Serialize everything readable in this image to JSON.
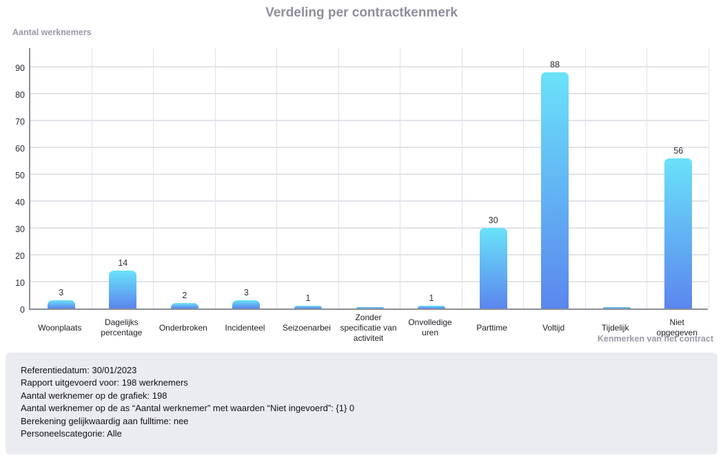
{
  "chart_data": {
    "type": "bar",
    "title": "Verdeling per contractkenmerk",
    "ylabel": "Aantal werknemers",
    "xlabel": "Kenmerken van het contract",
    "categories": [
      "Woonplaats",
      "Dagelijks percentage",
      "Onderbroken",
      "Incidenteel",
      "Seizoenarbei",
      "Zonder specificatie van activiteit",
      "Onvolledige uren",
      "Parttime",
      "Voltijd",
      "Tijdelijk",
      "Niet opgegeven"
    ],
    "values": [
      3,
      14,
      2,
      3,
      1,
      0,
      1,
      30,
      88,
      0,
      56
    ],
    "show_value_labels": true,
    "value_labels_hidden_for_zero": true,
    "ylim": [
      0,
      97
    ],
    "yticks": [
      0,
      10,
      20,
      30,
      40,
      50,
      60,
      70,
      80,
      90
    ],
    "grid": true,
    "legend": "none",
    "bar_color_top": "#6ae2f9",
    "bar_color_bottom": "#5b86ee"
  },
  "footer": {
    "lines": [
      "Referentiedatum: 30/01/2023",
      "Rapport uitgevoerd voor: 198 werknemers",
      "Aantal werknemer op de grafiek: 198",
      "Aantal werknemer op de as “Aantal werknemer” met waarden “Niet ingevoerd”: {1} 0",
      "Berekening gelijkwaardig aan fulltime: nee",
      "Personeelscategorie: Alle"
    ]
  }
}
